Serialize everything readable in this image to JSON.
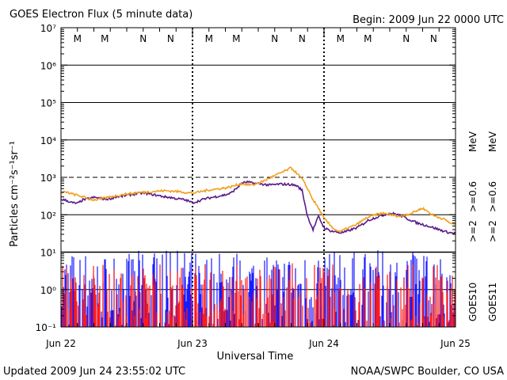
{
  "chart_data": {
    "type": "line",
    "title": "GOES Electron Flux (5 minute data)",
    "begin_label": "Begin: 2009 Jun 22 0000 UTC",
    "updated_label": "Updated 2009 Jun 24 23:55:02 UTC",
    "credit_label": "NOAA/SWPC Boulder, CO USA",
    "xlabel": "Universal Time",
    "ylabel": "Particles cm⁻²s⁻¹sr⁻¹",
    "x_tick_labels": [
      "Jun 22",
      "Jun 23",
      "Jun 24",
      "Jun 25"
    ],
    "xlim_hours": [
      0,
      72
    ],
    "ylim": [
      0.1,
      10000000
    ],
    "y_scale": "log",
    "y_tick_labels": [
      "10⁻¹",
      "10⁰",
      "10¹",
      "10²",
      "10³",
      "10⁴",
      "10⁵",
      "10⁶",
      "10⁷"
    ],
    "grid": "horizontal at each decade; dashed at 10^3",
    "midnight_noon_markers": [
      {
        "label": "M",
        "hour": 3,
        "color": "#1a1acc"
      },
      {
        "label": "M",
        "hour": 8,
        "color": "#cc0000"
      },
      {
        "label": "N",
        "hour": 15,
        "color": "#1a1acc"
      },
      {
        "label": "N",
        "hour": 20,
        "color": "#cc0000"
      },
      {
        "label": "M",
        "hour": 27,
        "color": "#1a1acc"
      },
      {
        "label": "M",
        "hour": 32,
        "color": "#cc0000"
      },
      {
        "label": "N",
        "hour": 39,
        "color": "#1a1acc"
      },
      {
        "label": "N",
        "hour": 44,
        "color": "#cc0000"
      },
      {
        "label": "M",
        "hour": 51,
        "color": "#1a1acc"
      },
      {
        "label": "M",
        "hour": 56,
        "color": "#cc0000"
      },
      {
        "label": "N",
        "hour": 63,
        "color": "#1a1acc"
      },
      {
        "label": "N",
        "hour": 68,
        "color": "#cc0000"
      }
    ],
    "legend": [
      {
        "label": ">=2",
        "color": "#1a1acc"
      },
      {
        "label": ">=0.6",
        "color": "#6a0d91"
      },
      {
        "label": "MeV",
        "color": "#000000"
      },
      {
        "label": ">=2",
        "color": "#cc0000"
      },
      {
        "label": ">=0.6",
        "color": "#ff9900"
      },
      {
        "label": "MeV",
        "color": "#000000"
      },
      {
        "label": "GOES10",
        "color": "#000000"
      },
      {
        "label": "GOES11",
        "color": "#000000"
      }
    ],
    "series": [
      {
        "name": "GOES10 >=0.6 MeV",
        "color": "#5a1a8a",
        "x": [
          0,
          1,
          2,
          3,
          4,
          5,
          6,
          7,
          8,
          9,
          10,
          11,
          12,
          13,
          14,
          15,
          16,
          17,
          18,
          19,
          20,
          21,
          22,
          23,
          24,
          25,
          26,
          27,
          28,
          29,
          30,
          31,
          32,
          33,
          34,
          35,
          36,
          37,
          38,
          39,
          40,
          41,
          42,
          43,
          44,
          45,
          46,
          47,
          48,
          49,
          50,
          51,
          52,
          53,
          54,
          55,
          56,
          57,
          58,
          59,
          60,
          61,
          62,
          63,
          64,
          65,
          66,
          67,
          68,
          69,
          70,
          71,
          72
        ],
        "y": [
          260,
          240,
          210,
          200,
          250,
          270,
          290,
          280,
          260,
          270,
          300,
          310,
          330,
          350,
          370,
          380,
          360,
          340,
          320,
          300,
          290,
          270,
          260,
          240,
          210,
          230,
          260,
          280,
          300,
          320,
          340,
          380,
          500,
          700,
          750,
          700,
          680,
          650,
          620,
          640,
          660,
          650,
          640,
          600,
          450,
          90,
          40,
          90,
          45,
          38,
          35,
          33,
          35,
          40,
          45,
          55,
          70,
          80,
          90,
          100,
          110,
          105,
          95,
          80,
          70,
          60,
          55,
          50,
          45,
          40,
          36,
          33,
          32
        ]
      },
      {
        "name": "GOES11 >=0.6 MeV",
        "color": "#f0a020",
        "x": [
          0,
          1,
          2,
          3,
          4,
          5,
          6,
          7,
          8,
          9,
          10,
          11,
          12,
          13,
          14,
          15,
          16,
          17,
          18,
          19,
          20,
          21,
          22,
          23,
          24,
          25,
          26,
          27,
          28,
          29,
          30,
          31,
          32,
          33,
          34,
          35,
          36,
          37,
          38,
          39,
          40,
          41,
          42,
          43,
          44,
          45,
          46,
          47,
          48,
          49,
          50,
          51,
          52,
          53,
          54,
          55,
          56,
          57,
          58,
          59,
          60,
          61,
          62,
          63,
          64,
          65,
          66,
          67,
          68,
          69,
          70,
          71,
          72
        ],
        "y": [
          380,
          400,
          360,
          330,
          300,
          270,
          250,
          260,
          280,
          300,
          320,
          340,
          360,
          370,
          390,
          400,
          410,
          420,
          430,
          440,
          430,
          420,
          410,
          390,
          380,
          400,
          430,
          460,
          480,
          500,
          520,
          560,
          620,
          680,
          640,
          620,
          700,
          800,
          950,
          1100,
          1300,
          1500,
          1800,
          1300,
          900,
          500,
          250,
          150,
          80,
          55,
          40,
          35,
          42,
          48,
          55,
          70,
          85,
          95,
          105,
          110,
          100,
          95,
          90,
          100,
          110,
          130,
          150,
          120,
          95,
          85,
          75,
          60,
          55
        ]
      },
      {
        "name": "GOES10 >=2 MeV",
        "color": "#1a1aff",
        "type": "noise",
        "typical": 1.0,
        "max": 12,
        "min": 0.1
      },
      {
        "name": "GOES11 >=2 MeV",
        "color": "#ff1a1a",
        "type": "noise",
        "typical": 0.4,
        "max": 6,
        "min": 0.1
      }
    ]
  }
}
